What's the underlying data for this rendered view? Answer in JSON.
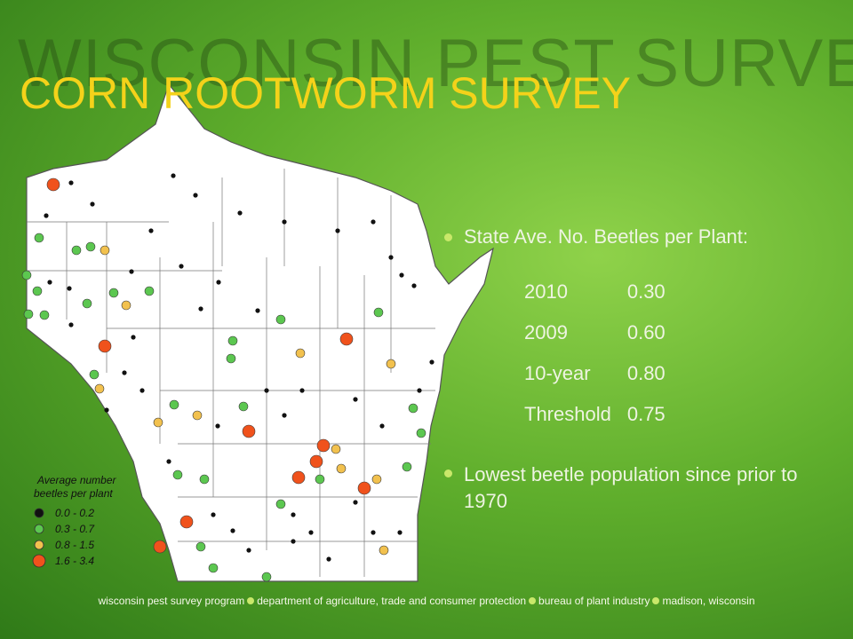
{
  "background_title": "WISCONSIN PEST SURVEY",
  "title": "CORN ROOTWORM SURVEY",
  "bullets": [
    "State Ave. No. Beetles per Plant:",
    "Lowest beetle population since prior to 1970"
  ],
  "table": {
    "rows": [
      [
        "2010",
        "0.30"
      ],
      [
        "2009",
        "0.60"
      ],
      [
        "10-year",
        "0.80"
      ],
      [
        "Threshold",
        "0.75"
      ]
    ]
  },
  "legend": {
    "title": [
      "Average number",
      "beetles per plant"
    ],
    "items": [
      {
        "label": "0.0 - 0.2",
        "color": "#111111"
      },
      {
        "label": "0.3 - 0.7",
        "color": "#5cc750"
      },
      {
        "label": "0.8 - 1.5",
        "color": "#f2c14e"
      },
      {
        "label": "1.6 - 3.4",
        "color": "#f0521c"
      }
    ]
  },
  "footer": [
    "wisconsin pest survey program",
    "department of agriculture, trade and consumer protection",
    "bureau of plant industry",
    "madison, wisconsin"
  ]
}
